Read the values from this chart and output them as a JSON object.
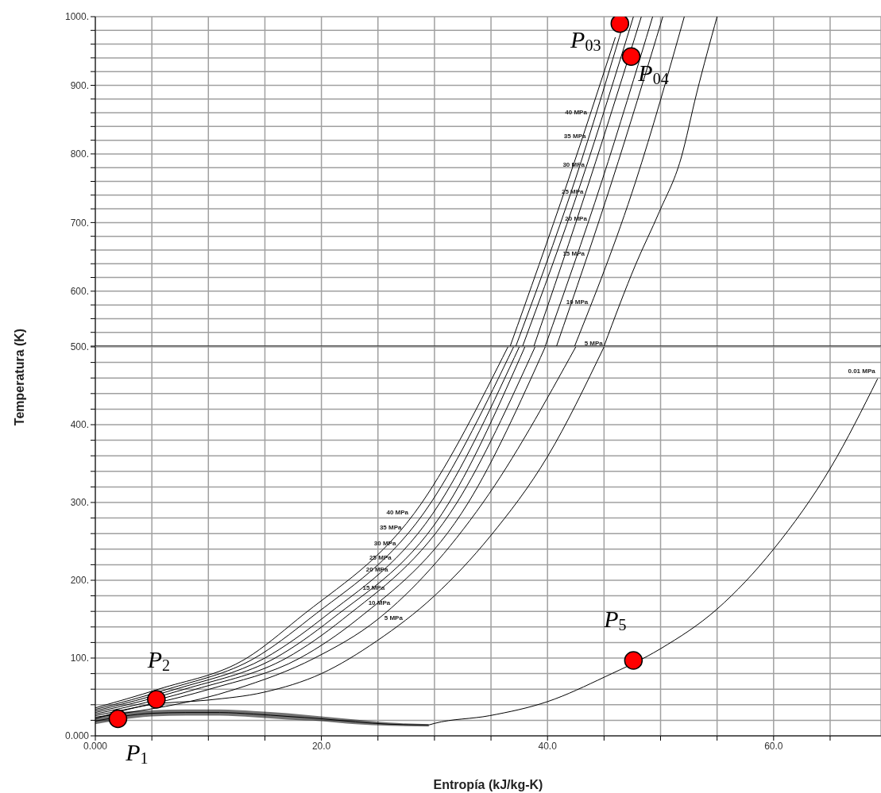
{
  "chart_data": [
    {
      "type": "line",
      "xlim": [
        0,
        69.5
      ],
      "ylim": [
        520,
        1000
      ],
      "grid": true,
      "tick_labels": "y",
      "xticks": [
        {
          "value": 0,
          "label": null
        },
        {
          "value": 5,
          "label": null
        },
        {
          "value": 10,
          "label": null
        },
        {
          "value": 15,
          "label": null
        },
        {
          "value": 20,
          "label": null
        },
        {
          "value": 25,
          "label": null
        },
        {
          "value": 30,
          "label": null
        },
        {
          "value": 35,
          "label": null
        },
        {
          "value": 40,
          "label": null
        },
        {
          "value": 45,
          "label": null
        },
        {
          "value": 50,
          "label": null
        },
        {
          "value": 55,
          "label": null
        },
        {
          "value": 60,
          "label": null
        },
        {
          "value": 65,
          "label": null
        }
      ],
      "yticks": [
        {
          "value": 520,
          "label": null
        },
        {
          "value": 540,
          "label": null
        },
        {
          "value": 560,
          "label": null
        },
        {
          "value": 580,
          "label": null
        },
        {
          "value": 600,
          "label": "600."
        },
        {
          "value": 620,
          "label": null
        },
        {
          "value": 640,
          "label": null
        },
        {
          "value": 660,
          "label": null
        },
        {
          "value": 680,
          "label": null
        },
        {
          "value": 700,
          "label": "700."
        },
        {
          "value": 720,
          "label": null
        },
        {
          "value": 740,
          "label": null
        },
        {
          "value": 760,
          "label": null
        },
        {
          "value": 780,
          "label": null
        },
        {
          "value": 800,
          "label": "800."
        },
        {
          "value": 820,
          "label": null
        },
        {
          "value": 840,
          "label": null
        },
        {
          "value": 860,
          "label": null
        },
        {
          "value": 880,
          "label": null
        },
        {
          "value": 900,
          "label": "900."
        },
        {
          "value": 920,
          "label": null
        },
        {
          "value": 940,
          "label": null
        },
        {
          "value": 960,
          "label": null
        },
        {
          "value": 980,
          "label": null
        },
        {
          "value": 1000,
          "label": "1000."
        }
      ],
      "series": [
        {
          "color": "#000000",
          "x": [
            36.7,
            41.8,
            46.0
          ],
          "values": [
            520,
            760,
            970
          ]
        },
        {
          "color": "#000000",
          "x": [
            37.2,
            42.4,
            46.9
          ],
          "values": [
            520,
            760,
            1000
          ]
        },
        {
          "color": "#000000",
          "x": [
            37.8,
            43.0,
            47.6
          ],
          "values": [
            520,
            760,
            1000
          ]
        },
        {
          "color": "#000000",
          "x": [
            38.8,
            43.7,
            48.3
          ],
          "values": [
            520,
            760,
            1000
          ]
        },
        {
          "color": "#000000",
          "x": [
            39.8,
            44.8,
            49.3
          ],
          "values": [
            520,
            760,
            1000
          ]
        },
        {
          "color": "#000000",
          "x": [
            40.8,
            45.7,
            50.2
          ],
          "values": [
            520,
            760,
            1000
          ]
        },
        {
          "color": "#000000",
          "x": [
            42.4,
            47.8,
            52.1
          ],
          "values": [
            520,
            760,
            1000
          ]
        },
        {
          "color": "#000000",
          "x": [
            45.0,
            47.8,
            49.9,
            51.8,
            53.2,
            55.0
          ],
          "values": [
            520,
            639,
            716,
            793,
            889,
            1000
          ]
        },
        {
          "type": "scatter",
          "color": "#ff0000",
          "marker": "circle",
          "x": [
            46.4,
            47.4
          ],
          "values": [
            990,
            942
          ]
        }
      ],
      "annotations": [
        {
          "text": "40 MPa",
          "x": 43.7,
          "y": 860
        },
        {
          "text": "35 MPa",
          "x": 43.6,
          "y": 825
        },
        {
          "text": "30 MPa",
          "x": 43.5,
          "y": 784
        },
        {
          "text": "25 MPa",
          "x": 43.4,
          "y": 745
        },
        {
          "text": "20 MPa",
          "x": 43.7,
          "y": 705
        },
        {
          "text": "15 MPa",
          "x": 43.5,
          "y": 654
        },
        {
          "text": "10 MPa",
          "x": 43.8,
          "y": 584
        },
        {
          "text": "5 MPa",
          "x": 45.1,
          "y": 524
        },
        {
          "text": "P$_{03}$",
          "x": 46.4,
          "y": 990
        },
        {
          "text": "P$_{04}$",
          "x": 47.4,
          "y": 942
        }
      ]
    },
    {
      "type": "line",
      "xlim": [
        0,
        69.5
      ],
      "ylim": [
        0,
        500
      ],
      "grid": true,
      "xlabel": "Entropía (kJ/kg-K)",
      "ylabel": "Temperatura (K)",
      "xticks": [
        {
          "value": 0,
          "label": "0.000"
        },
        {
          "value": 5,
          "label": null
        },
        {
          "value": 10,
          "label": null
        },
        {
          "value": 15,
          "label": null
        },
        {
          "value": 20,
          "label": "20.0"
        },
        {
          "value": 25,
          "label": null
        },
        {
          "value": 30,
          "label": null
        },
        {
          "value": 35,
          "label": null
        },
        {
          "value": 40,
          "label": "40.0"
        },
        {
          "value": 45,
          "label": null
        },
        {
          "value": 50,
          "label": null
        },
        {
          "value": 55,
          "label": null
        },
        {
          "value": 60,
          "label": "60.0"
        },
        {
          "value": 65,
          "label": null
        }
      ],
      "yticks": [
        {
          "value": 0,
          "label": "0.000"
        },
        {
          "value": 20,
          "label": null
        },
        {
          "value": 40,
          "label": null
        },
        {
          "value": 60,
          "label": null
        },
        {
          "value": 80,
          "label": null
        },
        {
          "value": 100,
          "label": "100."
        },
        {
          "value": 120,
          "label": null
        },
        {
          "value": 140,
          "label": null
        },
        {
          "value": 160,
          "label": null
        },
        {
          "value": 180,
          "label": null
        },
        {
          "value": 200,
          "label": "200."
        },
        {
          "value": 220,
          "label": null
        },
        {
          "value": 240,
          "label": null
        },
        {
          "value": 260,
          "label": null
        },
        {
          "value": 280,
          "label": null
        },
        {
          "value": 300,
          "label": "300."
        },
        {
          "value": 320,
          "label": null
        },
        {
          "value": 340,
          "label": null
        },
        {
          "value": 360,
          "label": null
        },
        {
          "value": 380,
          "label": null
        },
        {
          "value": 400,
          "label": "400."
        },
        {
          "value": 420,
          "label": null
        },
        {
          "value": 440,
          "label": null
        },
        {
          "value": 460,
          "label": null
        },
        {
          "value": 480,
          "label": null
        },
        {
          "value": 500,
          "label": "500."
        }
      ],
      "series": [
        {
          "color": "#000000",
          "x": [
            0,
            2,
            5,
            8,
            11,
            14,
            17,
            20,
            23,
            26,
            29.5
          ],
          "values": [
            19,
            null,
            29,
            30,
            30,
            28,
            25,
            22,
            18,
            15,
            14
          ],
          "lower": [
            15,
            20,
            25,
            26,
            26,
            24,
            21,
            19,
            15,
            13,
            12
          ],
          "upper": [
            23,
            30,
            33,
            34,
            34,
            32,
            29,
            25,
            21,
            17,
            15
          ]
        },
        {
          "color": "#000000",
          "x": [
            0,
            5.6,
            13.4,
            17.9,
            28.9,
            36.5
          ],
          "values": [
            36,
            60,
            100,
            150,
            300,
            500
          ]
        },
        {
          "color": "#000000",
          "x": [
            0,
            6.4,
            14.1,
            18.9,
            29.7,
            37.0
          ],
          "values": [
            34,
            60,
            100,
            150,
            300,
            500
          ]
        },
        {
          "color": "#000000",
          "x": [
            0,
            7.1,
            15.0,
            20.0,
            30.5,
            37.5
          ],
          "values": [
            32,
            60,
            100,
            150,
            300,
            500
          ]
        },
        {
          "color": "#000000",
          "x": [
            0,
            7.9,
            15.9,
            20.9,
            31.3,
            38.0
          ],
          "values": [
            30,
            60,
            100,
            150,
            300,
            500
          ]
        },
        {
          "color": "#000000",
          "x": [
            0,
            8.9,
            16.9,
            21.9,
            32.0,
            38.9
          ],
          "values": [
            28,
            60,
            100,
            150,
            300,
            500
          ]
        },
        {
          "color": "#000000",
          "x": [
            0,
            10.1,
            18.1,
            23.2,
            33.0,
            39.8
          ],
          "values": [
            26,
            60,
            100,
            150,
            300,
            500
          ]
        },
        {
          "color": "#000000",
          "x": [
            0,
            12.4,
            19.4,
            25.0,
            34.3,
            42.5
          ],
          "values": [
            24,
            60,
            100,
            150,
            300,
            500
          ]
        },
        {
          "color": "#000000",
          "x": [
            0,
            4.85,
            10,
            14.9,
            20,
            24.9,
            30,
            34.9,
            40,
            45.0
          ],
          "values": [
            22,
            40,
            46,
            56,
            80,
            122,
            180,
            256,
            359,
            500
          ]
        },
        {
          "color": "#000000",
          "x": [
            29.5,
            30,
            34.9,
            40,
            45.1,
            47.6,
            50,
            55,
            60,
            65.1,
            69.2
          ],
          "values": [
            14,
            16,
            26,
            44,
            76,
            null,
            112,
            163,
            240,
            346,
            459
          ]
        },
        {
          "type": "scatter",
          "color": "#ff0000",
          "marker": "circle",
          "x": [
            2.0,
            5.4,
            47.6
          ],
          "values": [
            22,
            47,
            97
          ]
        }
      ],
      "annotations": [
        {
          "text": "40 MPa",
          "x": 27.9,
          "y": 287
        },
        {
          "text": "35 MPa",
          "x": 27.3,
          "y": 267
        },
        {
          "text": "30 MPa",
          "x": 26.8,
          "y": 247
        },
        {
          "text": "25 MPa",
          "x": 26.4,
          "y": 229
        },
        {
          "text": "20 MPa",
          "x": 26.1,
          "y": 213
        },
        {
          "text": "15 MPa",
          "x": 25.8,
          "y": 190
        },
        {
          "text": "10 MPa",
          "x": 26.3,
          "y": 171
        },
        {
          "text": "5 MPa",
          "x": 27.4,
          "y": 151
        },
        {
          "text": "0.01 MPa",
          "x": 69.2,
          "y": 459
        },
        {
          "text": "P$_{1}$",
          "x": 2.0,
          "y": 22
        },
        {
          "text": "P$_{2}$",
          "x": 5.4,
          "y": 47
        },
        {
          "text": "P$_{5}$",
          "x": 47.6,
          "y": 97
        }
      ]
    }
  ]
}
